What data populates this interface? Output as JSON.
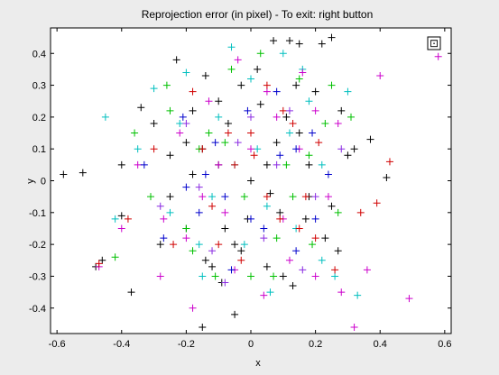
{
  "chart_data": {
    "type": "scatter",
    "title": "Reprojection error (in pixel) - To exit: right button",
    "xlabel": "x",
    "ylabel": "y",
    "xlim": [
      -0.62,
      0.62
    ],
    "ylim": [
      -0.48,
      0.48
    ],
    "xticks": [
      -0.6,
      -0.4,
      -0.2,
      0,
      0.2,
      0.4,
      0.6
    ],
    "xtick_labels": [
      "-0.6",
      "-0.4",
      "-0.2",
      "0",
      "0.2",
      "0.4",
      "0.6"
    ],
    "yticks": [
      -0.4,
      -0.3,
      -0.2,
      -0.1,
      0,
      0.1,
      0.2,
      0.3,
      0.4
    ],
    "ytick_labels": [
      "-0.4",
      "-0.3",
      "-0.2",
      "-0.1",
      "0",
      "0.1",
      "0.2",
      "0.3",
      "0.4"
    ],
    "grid": false,
    "legend": "none",
    "marker": "plus",
    "series": [
      {
        "color": "#000000",
        "x": [
          -0.58,
          -0.52,
          -0.48,
          -0.46,
          -0.4,
          -0.4,
          -0.37,
          -0.34,
          -0.3,
          -0.28,
          -0.25,
          -0.23,
          -0.2,
          -0.18,
          -0.15,
          -0.14,
          -0.12,
          -0.1,
          -0.09,
          -0.07,
          -0.05,
          -0.03,
          -0.01,
          0.02,
          0.05,
          0.07,
          0.09,
          0.11,
          0.12,
          0.13,
          0.15,
          0.17,
          0.18,
          0.2,
          0.22,
          0.23,
          0.25,
          0.27,
          0.3,
          0.32,
          0.37,
          0.42,
          -0.15,
          -0.05,
          0.05,
          0.15,
          -0.25,
          0.25,
          0.08,
          -0.08,
          0.0,
          0.1,
          -0.1,
          0.18,
          -0.18,
          0.03,
          -0.03,
          0.14,
          -0.14,
          0.06,
          -0.2,
          0.28
        ],
        "y": [
          0.02,
          0.025,
          -0.27,
          -0.25,
          -0.11,
          0.05,
          -0.35,
          0.23,
          0.18,
          -0.2,
          0.08,
          0.38,
          -0.15,
          0.22,
          -0.46,
          0.33,
          -0.27,
          0.05,
          -0.32,
          0.18,
          -0.42,
          0.3,
          -0.12,
          0.35,
          -0.27,
          0.44,
          -0.1,
          0.2,
          0.44,
          -0.33,
          0.43,
          -0.12,
          0.05,
          0.28,
          0.43,
          -0.18,
          0.45,
          -0.22,
          0.08,
          0.1,
          0.13,
          0.01,
          0.1,
          -0.2,
          0.05,
          0.15,
          -0.05,
          -0.08,
          0.12,
          -0.15,
          0.0,
          -0.3,
          0.25,
          -0.05,
          0.02,
          0.24,
          -0.22,
          0.3,
          -0.25,
          -0.04,
          0.12,
          0.22
        ]
      },
      {
        "color": "#00bfbf",
        "x": [
          -0.45,
          -0.42,
          -0.35,
          -0.3,
          -0.25,
          -0.2,
          -0.15,
          -0.1,
          -0.06,
          -0.02,
          0.02,
          0.06,
          0.1,
          0.14,
          0.18,
          0.22,
          0.26,
          0.3,
          0.33,
          -0.12,
          0.12,
          -0.22,
          0.22,
          0.0,
          -0.05,
          0.05,
          0.16,
          -0.16
        ],
        "y": [
          0.2,
          -0.12,
          0.1,
          0.29,
          -0.1,
          0.34,
          -0.3,
          0.2,
          0.42,
          -0.2,
          0.1,
          -0.35,
          0.4,
          -0.15,
          0.25,
          0.05,
          -0.3,
          0.28,
          -0.36,
          -0.05,
          0.15,
          0.18,
          -0.25,
          0.32,
          0.05,
          -0.08,
          0.35,
          -0.2
        ]
      },
      {
        "color": "#cc00cc",
        "x": [
          -0.47,
          -0.4,
          -0.35,
          -0.28,
          -0.22,
          -0.18,
          -0.13,
          -0.08,
          -0.04,
          0.0,
          0.04,
          0.08,
          0.12,
          0.16,
          0.2,
          0.24,
          0.28,
          0.32,
          0.36,
          0.4,
          0.49,
          0.58,
          -0.1,
          0.1,
          -0.2,
          0.2,
          -0.05,
          0.05,
          0.15,
          -0.15,
          0.27,
          -0.27
        ],
        "y": [
          -0.27,
          -0.15,
          0.05,
          -0.3,
          0.15,
          -0.4,
          0.25,
          -0.1,
          0.38,
          0.1,
          -0.36,
          0.2,
          -0.25,
          0.34,
          -0.3,
          -0.05,
          -0.35,
          -0.46,
          -0.28,
          0.33,
          -0.37,
          0.39,
          0.05,
          -0.12,
          -0.18,
          0.22,
          -0.28,
          0.28,
          0.1,
          -0.05,
          0.18,
          -0.12
        ]
      },
      {
        "color": "#00c000",
        "x": [
          -0.42,
          -0.36,
          -0.31,
          -0.26,
          -0.2,
          -0.16,
          -0.11,
          -0.06,
          -0.02,
          0.03,
          0.07,
          0.11,
          0.15,
          0.19,
          0.23,
          0.27,
          0.31,
          -0.08,
          0.08,
          -0.18,
          0.18,
          0.0,
          -0.13,
          0.13,
          0.25,
          -0.25
        ],
        "y": [
          -0.24,
          0.15,
          -0.05,
          0.3,
          -0.15,
          0.1,
          -0.3,
          0.35,
          -0.05,
          0.4,
          -0.3,
          0.05,
          0.32,
          -0.2,
          0.18,
          -0.1,
          0.2,
          0.12,
          -0.18,
          -0.22,
          0.08,
          -0.3,
          0.15,
          -0.05,
          0.3,
          0.22
        ]
      },
      {
        "color": "#d00000",
        "x": [
          -0.47,
          -0.38,
          -0.3,
          -0.24,
          -0.18,
          -0.12,
          -0.07,
          -0.03,
          0.01,
          0.05,
          0.09,
          0.13,
          0.17,
          0.21,
          0.26,
          0.34,
          0.43,
          0.39,
          -0.05,
          0.05,
          -0.15,
          0.15,
          -0.1,
          0.1,
          0.0,
          0.2
        ],
        "y": [
          -0.26,
          -0.12,
          0.1,
          -0.2,
          0.28,
          -0.08,
          0.15,
          -0.25,
          0.08,
          0.3,
          -0.12,
          0.18,
          -0.05,
          0.12,
          -0.28,
          -0.1,
          0.06,
          -0.07,
          0.05,
          -0.05,
          0.1,
          -0.15,
          -0.2,
          0.22,
          0.15,
          -0.18
        ]
      },
      {
        "color": "#0000cc",
        "x": [
          -0.33,
          -0.27,
          -0.21,
          -0.16,
          -0.11,
          -0.06,
          -0.01,
          0.04,
          0.09,
          0.14,
          0.19,
          0.24,
          -0.08,
          0.08,
          0.0,
          -0.14,
          0.14,
          0.2,
          -0.2
        ],
        "y": [
          0.05,
          -0.18,
          0.2,
          -0.1,
          0.12,
          -0.28,
          0.22,
          -0.15,
          0.08,
          -0.22,
          0.15,
          0.02,
          -0.05,
          0.28,
          -0.12,
          0.02,
          0.1,
          -0.12,
          -0.02
        ]
      },
      {
        "color": "#8a2be2",
        "x": [
          -0.28,
          -0.2,
          -0.12,
          -0.04,
          0.04,
          0.12,
          0.2,
          0.28,
          -0.08,
          0.08,
          0.0,
          -0.16,
          0.16
        ],
        "y": [
          -0.08,
          0.18,
          -0.22,
          0.12,
          -0.18,
          0.22,
          -0.05,
          0.1,
          -0.32,
          0.05,
          0.2,
          -0.02,
          -0.28
        ]
      }
    ]
  },
  "legend_box_glyph": "⊡"
}
